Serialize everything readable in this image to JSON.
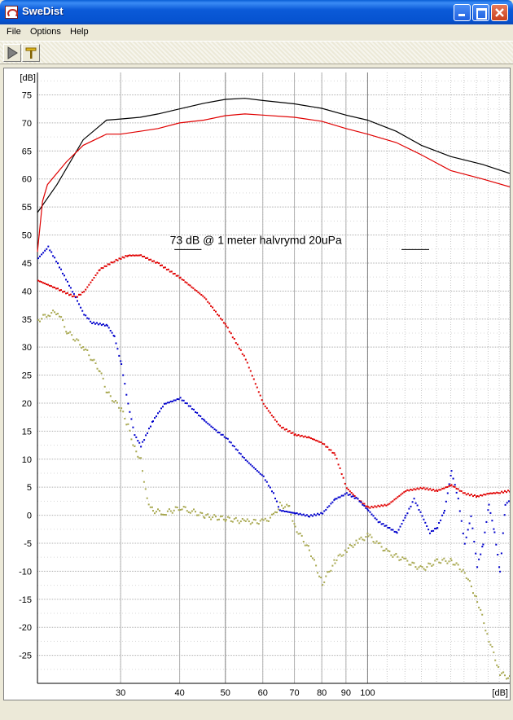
{
  "window": {
    "title": "SweDist"
  },
  "menu": {
    "items": [
      "File",
      "Options",
      "Help"
    ]
  },
  "toolbar": {
    "buttons": [
      "play-icon",
      "tuning-fork-icon"
    ]
  },
  "chart_data": {
    "type": "line",
    "annotation": "73 dB @ 1 meter halvrymd 20uPa",
    "ylabel": "[dB]",
    "xlabel": "[dB]",
    "xscale": "log",
    "xlim": [
      20,
      200
    ],
    "ylim": [
      -30,
      79
    ],
    "grid": true,
    "y_ticks": [
      75,
      70,
      65,
      60,
      55,
      50,
      45,
      40,
      35,
      30,
      25,
      20,
      15,
      10,
      5,
      0,
      -5,
      -10,
      -15,
      -20,
      -25
    ],
    "x_ticks": [
      30,
      40,
      50,
      60,
      70,
      80,
      90,
      100
    ],
    "x_tick_labels": [
      "30",
      "40",
      "50",
      "60",
      "70",
      "80",
      "90",
      "100"
    ],
    "series": [
      {
        "color": "#000000",
        "style": "line",
        "x": [
          20,
          22,
          25,
          28,
          30,
          33,
          36,
          40,
          45,
          50,
          55,
          60,
          70,
          80,
          90,
          100,
          115,
          130,
          150,
          175,
          200
        ],
        "y": [
          54,
          59,
          67,
          70.5,
          70.7,
          71,
          71.6,
          72.5,
          73.5,
          74.2,
          74.4,
          74,
          73.4,
          72.6,
          71.4,
          70.5,
          68.5,
          66,
          64,
          62.6,
          61
        ]
      },
      {
        "color": "#e00000",
        "style": "line",
        "x": [
          20,
          20.5,
          21,
          23,
          25,
          28,
          30,
          33,
          36,
          40,
          45,
          50,
          55,
          60,
          70,
          80,
          90,
          100,
          115,
          130,
          150,
          175,
          200
        ],
        "y": [
          47,
          56,
          59,
          63,
          66,
          68,
          68,
          68.5,
          69,
          70,
          70.5,
          71.3,
          71.6,
          71.4,
          71,
          70.3,
          69,
          68,
          66.5,
          64.3,
          61.5,
          60,
          58.6
        ]
      },
      {
        "color": "#e00000",
        "style": "dots",
        "x": [
          20,
          22,
          24,
          25,
          27,
          29,
          31,
          33,
          36,
          40,
          45,
          50,
          55,
          60,
          65,
          70,
          75,
          80,
          85,
          90,
          95,
          100,
          110,
          120,
          130,
          140,
          150,
          160,
          170,
          180,
          190,
          200
        ],
        "y": [
          42,
          40.5,
          39,
          40,
          44,
          45.5,
          46.5,
          46.5,
          45,
          42.5,
          39,
          34,
          28,
          20,
          16,
          14.5,
          14,
          13,
          11,
          5,
          3,
          1.5,
          2,
          4.5,
          5,
          4.5,
          5.5,
          4,
          3.5,
          4,
          4.2,
          4.5
        ]
      },
      {
        "color": "#0000cc",
        "style": "dots",
        "x": [
          20,
          21,
          22,
          24,
          25,
          26,
          28,
          29,
          30,
          31,
          32,
          33,
          35,
          37,
          40,
          42,
          45,
          48,
          50,
          55,
          60,
          63,
          65,
          70,
          75,
          80,
          85,
          90,
          95,
          100,
          105,
          110,
          115,
          120,
          125,
          130,
          135,
          140,
          145,
          150,
          155,
          160,
          165,
          170,
          175,
          180,
          185,
          190,
          195,
          200
        ],
        "y": [
          46,
          48,
          45,
          39,
          36,
          34.5,
          34,
          32,
          27,
          20,
          14.5,
          12.5,
          17,
          20,
          21,
          19.5,
          17,
          15,
          14,
          10,
          7,
          4,
          1,
          0.5,
          0,
          0.5,
          3,
          4,
          3,
          1,
          -1,
          -2,
          -3,
          0,
          3,
          0,
          -3,
          -2,
          1,
          8,
          3,
          -5,
          0,
          -9,
          -5,
          2,
          -3,
          -10,
          2,
          3
        ]
      },
      {
        "color": "#a8a850",
        "style": "dots",
        "x": [
          20,
          21,
          22,
          23,
          25,
          27,
          28,
          30,
          31,
          32,
          33,
          34,
          35,
          37,
          40,
          42,
          45,
          50,
          55,
          60,
          63,
          65,
          68,
          70,
          75,
          80,
          85,
          90,
          95,
          100,
          105,
          110,
          120,
          130,
          140,
          150,
          160,
          170,
          180,
          190,
          200
        ],
        "y": [
          35,
          36,
          36.5,
          33,
          30,
          26,
          22,
          19,
          16,
          12,
          10,
          3,
          1,
          0.5,
          1.5,
          1,
          0,
          -0.5,
          -1,
          -1,
          0,
          2,
          1.5,
          -2,
          -6,
          -12,
          -8,
          -6,
          -4.5,
          -3.5,
          -5,
          -6.5,
          -8,
          -9.5,
          -8,
          -8,
          -10,
          -15,
          -22,
          -28,
          -29
        ]
      }
    ]
  }
}
